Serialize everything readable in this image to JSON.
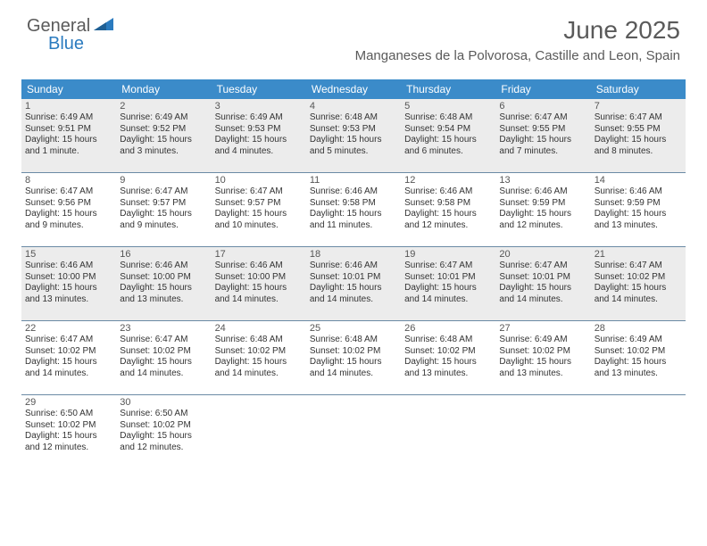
{
  "logo": {
    "text1": "General",
    "text2": "Blue",
    "color1": "#5a5a5a",
    "color2": "#2b7bbf",
    "shape_color": "#2b7bbf"
  },
  "title": {
    "month": "June 2025",
    "location": "Manganeses de la Polvorosa, Castille and Leon, Spain"
  },
  "colors": {
    "header_bg": "#3b8bc9",
    "header_text": "#ffffff",
    "row_border": "#6b8aa5",
    "shaded_bg": "#ececec"
  },
  "weekdays": [
    "Sunday",
    "Monday",
    "Tuesday",
    "Wednesday",
    "Thursday",
    "Friday",
    "Saturday"
  ],
  "weeks": [
    {
      "shaded": true,
      "days": [
        {
          "n": "1",
          "sr": "6:49 AM",
          "ss": "9:51 PM",
          "dl": "15 hours and 1 minute."
        },
        {
          "n": "2",
          "sr": "6:49 AM",
          "ss": "9:52 PM",
          "dl": "15 hours and 3 minutes."
        },
        {
          "n": "3",
          "sr": "6:49 AM",
          "ss": "9:53 PM",
          "dl": "15 hours and 4 minutes."
        },
        {
          "n": "4",
          "sr": "6:48 AM",
          "ss": "9:53 PM",
          "dl": "15 hours and 5 minutes."
        },
        {
          "n": "5",
          "sr": "6:48 AM",
          "ss": "9:54 PM",
          "dl": "15 hours and 6 minutes."
        },
        {
          "n": "6",
          "sr": "6:47 AM",
          "ss": "9:55 PM",
          "dl": "15 hours and 7 minutes."
        },
        {
          "n": "7",
          "sr": "6:47 AM",
          "ss": "9:55 PM",
          "dl": "15 hours and 8 minutes."
        }
      ]
    },
    {
      "shaded": false,
      "days": [
        {
          "n": "8",
          "sr": "6:47 AM",
          "ss": "9:56 PM",
          "dl": "15 hours and 9 minutes."
        },
        {
          "n": "9",
          "sr": "6:47 AM",
          "ss": "9:57 PM",
          "dl": "15 hours and 9 minutes."
        },
        {
          "n": "10",
          "sr": "6:47 AM",
          "ss": "9:57 PM",
          "dl": "15 hours and 10 minutes."
        },
        {
          "n": "11",
          "sr": "6:46 AM",
          "ss": "9:58 PM",
          "dl": "15 hours and 11 minutes."
        },
        {
          "n": "12",
          "sr": "6:46 AM",
          "ss": "9:58 PM",
          "dl": "15 hours and 12 minutes."
        },
        {
          "n": "13",
          "sr": "6:46 AM",
          "ss": "9:59 PM",
          "dl": "15 hours and 12 minutes."
        },
        {
          "n": "14",
          "sr": "6:46 AM",
          "ss": "9:59 PM",
          "dl": "15 hours and 13 minutes."
        }
      ]
    },
    {
      "shaded": true,
      "days": [
        {
          "n": "15",
          "sr": "6:46 AM",
          "ss": "10:00 PM",
          "dl": "15 hours and 13 minutes."
        },
        {
          "n": "16",
          "sr": "6:46 AM",
          "ss": "10:00 PM",
          "dl": "15 hours and 13 minutes."
        },
        {
          "n": "17",
          "sr": "6:46 AM",
          "ss": "10:00 PM",
          "dl": "15 hours and 14 minutes."
        },
        {
          "n": "18",
          "sr": "6:46 AM",
          "ss": "10:01 PM",
          "dl": "15 hours and 14 minutes."
        },
        {
          "n": "19",
          "sr": "6:47 AM",
          "ss": "10:01 PM",
          "dl": "15 hours and 14 minutes."
        },
        {
          "n": "20",
          "sr": "6:47 AM",
          "ss": "10:01 PM",
          "dl": "15 hours and 14 minutes."
        },
        {
          "n": "21",
          "sr": "6:47 AM",
          "ss": "10:02 PM",
          "dl": "15 hours and 14 minutes."
        }
      ]
    },
    {
      "shaded": false,
      "days": [
        {
          "n": "22",
          "sr": "6:47 AM",
          "ss": "10:02 PM",
          "dl": "15 hours and 14 minutes."
        },
        {
          "n": "23",
          "sr": "6:47 AM",
          "ss": "10:02 PM",
          "dl": "15 hours and 14 minutes."
        },
        {
          "n": "24",
          "sr": "6:48 AM",
          "ss": "10:02 PM",
          "dl": "15 hours and 14 minutes."
        },
        {
          "n": "25",
          "sr": "6:48 AM",
          "ss": "10:02 PM",
          "dl": "15 hours and 14 minutes."
        },
        {
          "n": "26",
          "sr": "6:48 AM",
          "ss": "10:02 PM",
          "dl": "15 hours and 13 minutes."
        },
        {
          "n": "27",
          "sr": "6:49 AM",
          "ss": "10:02 PM",
          "dl": "15 hours and 13 minutes."
        },
        {
          "n": "28",
          "sr": "6:49 AM",
          "ss": "10:02 PM",
          "dl": "15 hours and 13 minutes."
        }
      ]
    },
    {
      "shaded": false,
      "days": [
        {
          "n": "29",
          "sr": "6:50 AM",
          "ss": "10:02 PM",
          "dl": "15 hours and 12 minutes."
        },
        {
          "n": "30",
          "sr": "6:50 AM",
          "ss": "10:02 PM",
          "dl": "15 hours and 12 minutes."
        },
        {
          "n": "",
          "sr": "",
          "ss": "",
          "dl": ""
        },
        {
          "n": "",
          "sr": "",
          "ss": "",
          "dl": ""
        },
        {
          "n": "",
          "sr": "",
          "ss": "",
          "dl": ""
        },
        {
          "n": "",
          "sr": "",
          "ss": "",
          "dl": ""
        },
        {
          "n": "",
          "sr": "",
          "ss": "",
          "dl": ""
        }
      ]
    }
  ],
  "labels": {
    "sunrise": "Sunrise: ",
    "sunset": "Sunset: ",
    "daylight": "Daylight: "
  }
}
